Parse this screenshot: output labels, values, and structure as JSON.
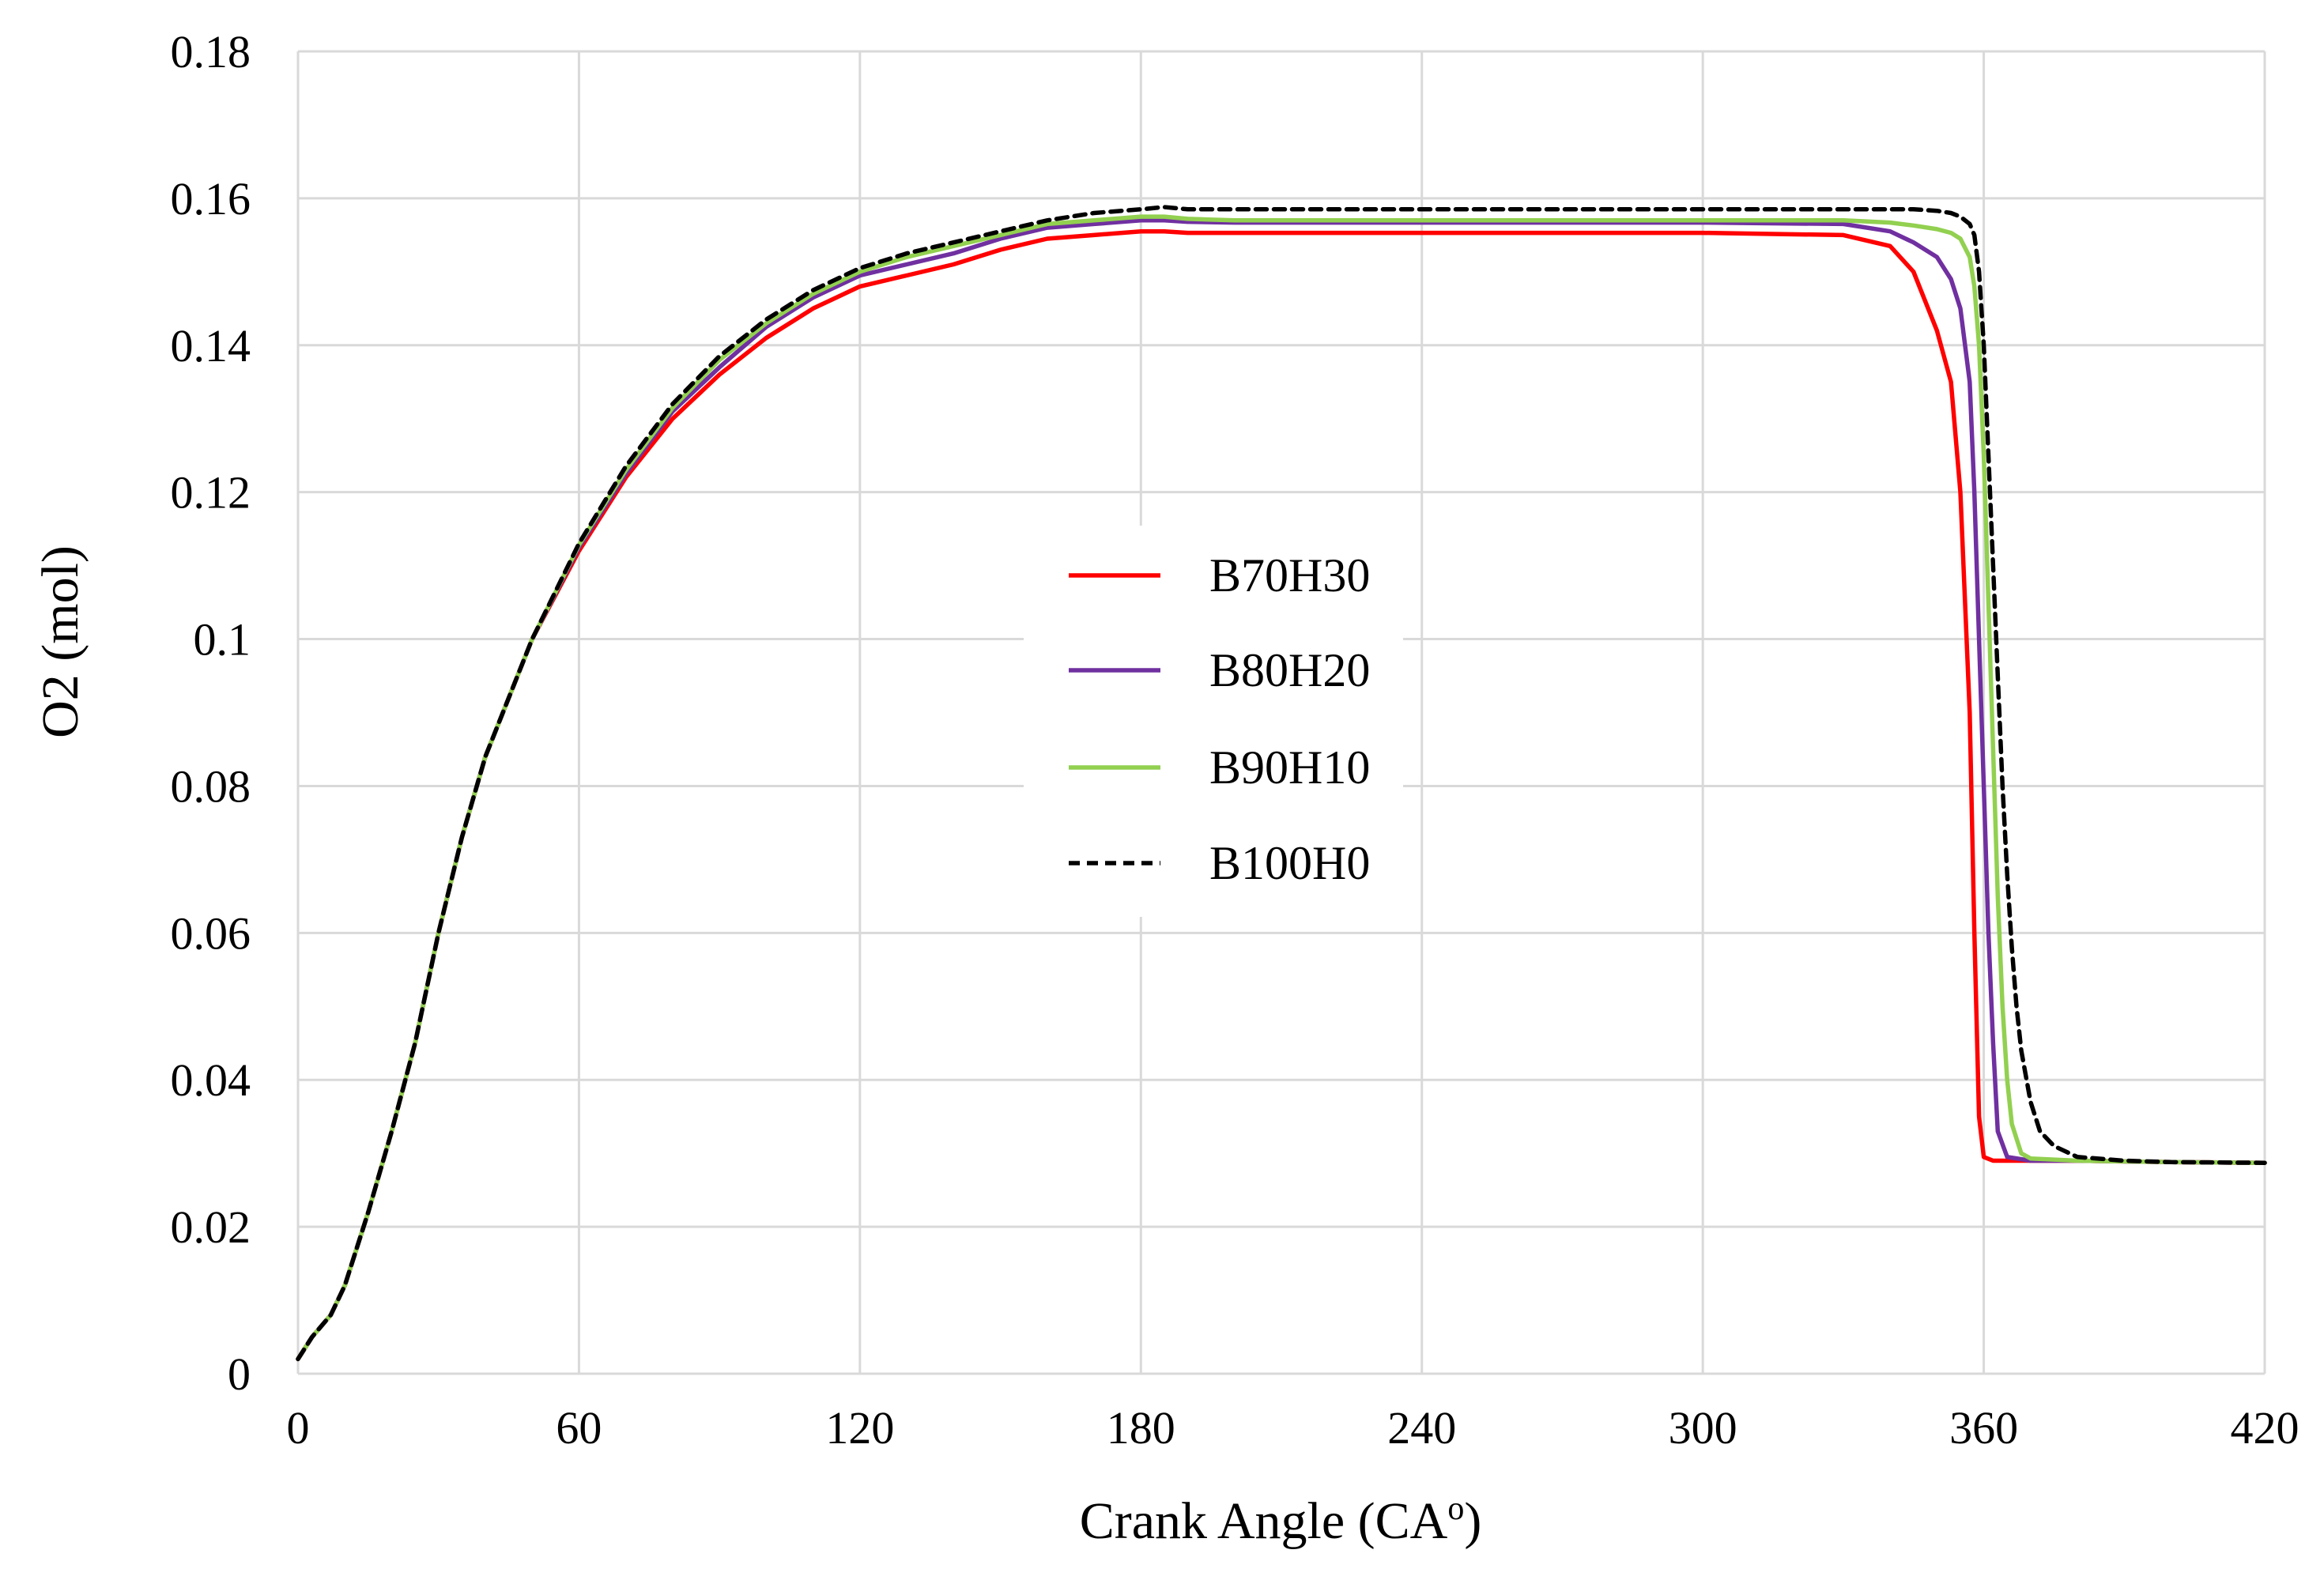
{
  "chart_data": {
    "type": "line",
    "title": "",
    "xlabel": "Crank Angle (CA",
    "xlabel_suffix": "o",
    "xlabel_close": ")",
    "ylabel": "O2 (mol)",
    "xlim": [
      0,
      420
    ],
    "ylim": [
      0,
      0.18
    ],
    "x_ticks": [
      0,
      60,
      120,
      180,
      240,
      300,
      360,
      420
    ],
    "x_tick_labels": [
      "0",
      "60",
      "120",
      "180",
      "240",
      "300",
      "360",
      "420"
    ],
    "y_ticks": [
      0,
      0.02,
      0.04,
      0.06,
      0.08,
      0.1,
      0.12,
      0.14,
      0.16,
      0.18
    ],
    "y_tick_labels": [
      "0",
      "0.02",
      "0.04",
      "0.06",
      "0.08",
      "0.1",
      "0.12",
      "0.14",
      "0.16",
      "0.18"
    ],
    "grid": true,
    "legend_position": "center",
    "series": [
      {
        "name": "B70H30",
        "color": "#ff0000",
        "dash": "solid",
        "x": [
          0,
          3,
          7,
          10,
          15,
          20,
          25,
          30,
          35,
          40,
          50,
          60,
          70,
          80,
          90,
          100,
          110,
          120,
          130,
          140,
          150,
          160,
          170,
          180,
          185,
          190,
          200,
          210,
          220,
          240,
          300,
          330,
          340,
          345,
          350,
          353,
          355,
          357,
          358,
          359,
          360,
          362,
          370,
          380,
          400,
          420
        ],
        "y": [
          0.002,
          0.005,
          0.008,
          0.012,
          0.022,
          0.033,
          0.045,
          0.06,
          0.073,
          0.084,
          0.1,
          0.112,
          0.122,
          0.13,
          0.136,
          0.141,
          0.145,
          0.148,
          0.1495,
          0.151,
          0.153,
          0.1545,
          0.155,
          0.1555,
          0.1555,
          0.1553,
          0.1553,
          0.1553,
          0.1553,
          0.1553,
          0.1553,
          0.155,
          0.1535,
          0.15,
          0.142,
          0.135,
          0.12,
          0.09,
          0.06,
          0.035,
          0.0295,
          0.029,
          0.029,
          0.029,
          0.0288,
          0.0287
        ]
      },
      {
        "name": "B80H20",
        "color": "#7030a0",
        "dash": "solid",
        "x": [
          0,
          3,
          7,
          10,
          15,
          20,
          25,
          30,
          35,
          40,
          50,
          60,
          70,
          80,
          90,
          100,
          110,
          120,
          130,
          140,
          150,
          160,
          170,
          180,
          185,
          190,
          200,
          210,
          220,
          240,
          300,
          330,
          340,
          345,
          350,
          353,
          355,
          357,
          358,
          359,
          360,
          361,
          362,
          363,
          365,
          370,
          380,
          400,
          420
        ],
        "y": [
          0.002,
          0.005,
          0.008,
          0.012,
          0.022,
          0.033,
          0.045,
          0.06,
          0.073,
          0.084,
          0.1,
          0.1125,
          0.1225,
          0.131,
          0.137,
          0.1425,
          0.1465,
          0.1495,
          0.151,
          0.1525,
          0.1545,
          0.156,
          0.1565,
          0.157,
          0.157,
          0.1568,
          0.1567,
          0.1567,
          0.1567,
          0.1567,
          0.1567,
          0.1565,
          0.1555,
          0.154,
          0.152,
          0.149,
          0.145,
          0.135,
          0.12,
          0.1,
          0.08,
          0.06,
          0.045,
          0.033,
          0.0295,
          0.029,
          0.029,
          0.0288,
          0.0287
        ]
      },
      {
        "name": "B90H10",
        "color": "#92d050",
        "dash": "solid",
        "x": [
          0,
          3,
          7,
          10,
          15,
          20,
          25,
          30,
          35,
          40,
          50,
          60,
          70,
          80,
          90,
          100,
          110,
          120,
          130,
          140,
          150,
          160,
          170,
          180,
          185,
          190,
          200,
          210,
          220,
          240,
          300,
          330,
          340,
          345,
          350,
          353,
          355,
          357,
          358,
          359,
          360,
          361,
          362,
          363,
          364,
          365,
          366,
          368,
          370,
          380,
          400,
          420
        ],
        "y": [
          0.002,
          0.005,
          0.008,
          0.012,
          0.022,
          0.033,
          0.045,
          0.06,
          0.073,
          0.084,
          0.1,
          0.1128,
          0.123,
          0.1315,
          0.138,
          0.143,
          0.147,
          0.15,
          0.152,
          0.1535,
          0.155,
          0.1565,
          0.157,
          0.1575,
          0.1575,
          0.1572,
          0.157,
          0.157,
          0.157,
          0.157,
          0.157,
          0.157,
          0.1567,
          0.1563,
          0.1558,
          0.1553,
          0.1545,
          0.152,
          0.148,
          0.14,
          0.125,
          0.105,
          0.085,
          0.065,
          0.05,
          0.04,
          0.034,
          0.03,
          0.0293,
          0.029,
          0.0288,
          0.0287
        ]
      },
      {
        "name": "B100H0",
        "color": "#000000",
        "dash": "dashed",
        "x": [
          0,
          3,
          7,
          10,
          15,
          20,
          25,
          30,
          35,
          40,
          50,
          60,
          70,
          80,
          90,
          100,
          110,
          120,
          130,
          140,
          150,
          160,
          170,
          180,
          185,
          190,
          200,
          210,
          220,
          240,
          300,
          330,
          340,
          345,
          350,
          353,
          355,
          357,
          358,
          359,
          360,
          361,
          362,
          363,
          364,
          365,
          366,
          367,
          368,
          370,
          372,
          375,
          380,
          390,
          400,
          420
        ],
        "y": [
          0.002,
          0.005,
          0.008,
          0.012,
          0.022,
          0.033,
          0.045,
          0.06,
          0.073,
          0.084,
          0.1,
          0.113,
          0.1235,
          0.132,
          0.1385,
          0.1435,
          0.1475,
          0.1505,
          0.1525,
          0.154,
          0.1555,
          0.157,
          0.158,
          0.1585,
          0.1588,
          0.1585,
          0.1585,
          0.1585,
          0.1585,
          0.1585,
          0.1585,
          0.1585,
          0.1585,
          0.1585,
          0.1583,
          0.158,
          0.1575,
          0.1565,
          0.155,
          0.15,
          0.14,
          0.125,
          0.11,
          0.095,
          0.08,
          0.068,
          0.058,
          0.05,
          0.044,
          0.037,
          0.033,
          0.031,
          0.0295,
          0.029,
          0.0288,
          0.0287
        ]
      }
    ]
  }
}
